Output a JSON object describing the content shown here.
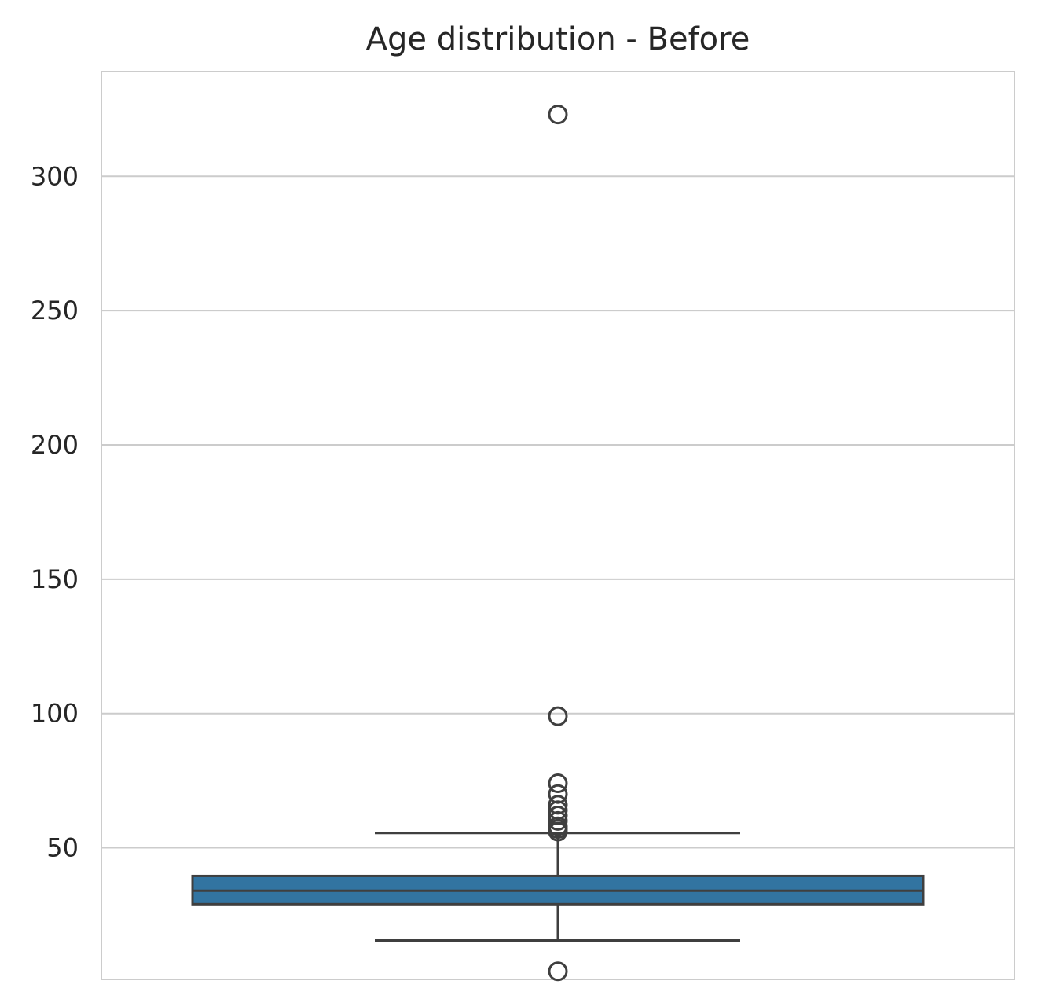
{
  "chart_data": {
    "type": "box",
    "title": "Age distribution - Before",
    "xlabel": "",
    "ylabel": "",
    "ylim": [
      1,
      339
    ],
    "yticks": [
      50,
      100,
      150,
      200,
      250,
      300
    ],
    "grid": true,
    "box": {
      "q1": 29,
      "median": 34,
      "q3": 39.5,
      "whisker_low": 15.5,
      "whisker_high": 55.5,
      "color": "#3274a1",
      "edge_color": "#3f3f3f"
    },
    "outliers": [
      323,
      99,
      74,
      70,
      66,
      64,
      62,
      60,
      58,
      57,
      56,
      4
    ]
  },
  "colors": {
    "grid": "#cccccc",
    "axes_edge": "#cccccc",
    "text": "#262626"
  }
}
